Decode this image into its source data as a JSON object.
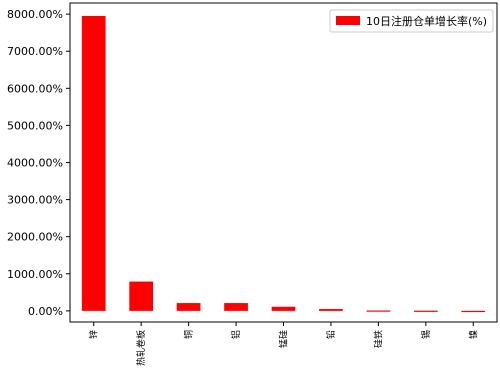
{
  "chart_data": {
    "type": "bar",
    "categories": [
      "锌",
      "热轧卷板",
      "铜",
      "铝",
      "锰硅",
      "铅",
      "硅铁",
      "锡",
      "镍"
    ],
    "values": [
      7950,
      790,
      210,
      210,
      110,
      50,
      10,
      5,
      -10
    ],
    "legend": [
      "10日注册仓单增长率(%)"
    ],
    "bar_color": "#ff0000",
    "ylim": [
      -300,
      8300
    ],
    "yticks": [
      0,
      1000,
      2000,
      3000,
      4000,
      5000,
      6000,
      7000,
      8000
    ],
    "ytick_labels": [
      "0.00%",
      "1000.00%",
      "2000.00%",
      "3000.00%",
      "4000.00%",
      "5000.00%",
      "6000.00%",
      "7000.00%",
      "8000.00%"
    ],
    "legend_position": "top-right",
    "grid": false,
    "title": "",
    "xlabel": "",
    "ylabel": ""
  }
}
